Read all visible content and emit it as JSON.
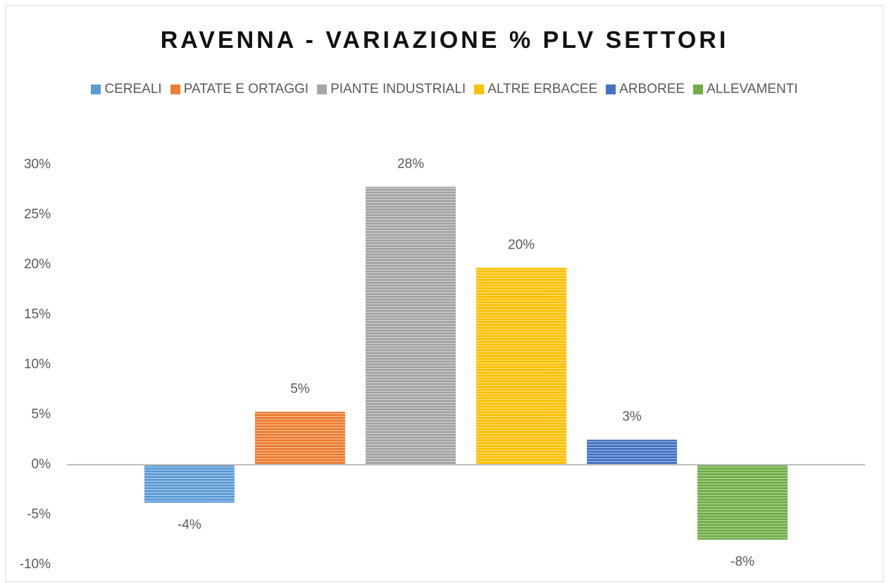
{
  "chart_data": {
    "type": "bar",
    "title": "RAVENNA - VARIAZIONE % PLV SETTORI",
    "categories": [
      null
    ],
    "series": [
      {
        "name": "CEREALI",
        "color": "#5b9bd5",
        "values": [
          -3.8
        ],
        "value_labels": [
          "-4%"
        ]
      },
      {
        "name": "PATATE E ORTAGGI",
        "color": "#ed7d31",
        "values": [
          5.3
        ],
        "value_labels": [
          "5%"
        ]
      },
      {
        "name": "PIANTE INDUSTRIALI",
        "color": "#a5a5a5",
        "values": [
          27.8
        ],
        "value_labels": [
          "28%"
        ]
      },
      {
        "name": "ALTRE ERBACEE",
        "color": "#ffc000",
        "values": [
          19.7
        ],
        "value_labels": [
          "20%"
        ]
      },
      {
        "name": "ARBOREE",
        "color": "#4472c4",
        "values": [
          2.5
        ],
        "value_labels": [
          "3%"
        ]
      },
      {
        "name": "ALLEVAMENTI",
        "color": "#70ad47",
        "values": [
          -7.5
        ],
        "value_labels": [
          "-8%"
        ]
      }
    ],
    "ylim": [
      -10,
      30
    ],
    "yticks": [
      {
        "value": -10,
        "label": "-10%"
      },
      {
        "value": -5,
        "label": "-5%"
      },
      {
        "value": 0,
        "label": "0%"
      },
      {
        "value": 5,
        "label": "5%"
      },
      {
        "value": 10,
        "label": "10%"
      },
      {
        "value": 15,
        "label": "15%"
      },
      {
        "value": 20,
        "label": "20%"
      },
      {
        "value": 25,
        "label": "25%"
      },
      {
        "value": 30,
        "label": "30%"
      }
    ],
    "grid": false,
    "legend": "top"
  }
}
